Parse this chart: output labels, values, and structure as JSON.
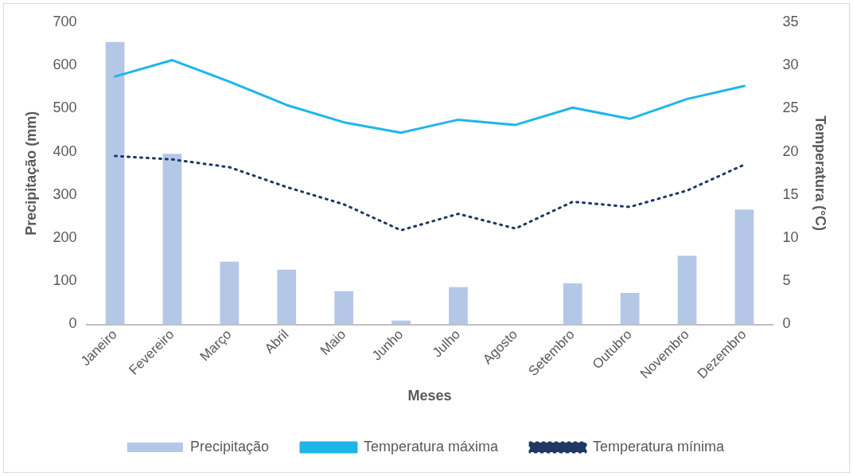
{
  "chart_data": {
    "type": "bar",
    "xlabel": "Meses",
    "ylabel": "Precipitação (mm)",
    "y2label": "Temperatura (°C)",
    "categories": [
      "Janeiro",
      "Fevereiro",
      "Março",
      "Abril",
      "Maio",
      "Junho",
      "Julho",
      "Agosto",
      "Setembro",
      "Outubro",
      "Novembro",
      "Dezembro"
    ],
    "series": [
      {
        "name": "Precipitação",
        "color": "#b4c7e7",
        "values": [
          654,
          395,
          145,
          127,
          77,
          9,
          86,
          null,
          95,
          73,
          159,
          266
        ]
      },
      {
        "name": "Temperatura máxima",
        "type": "line",
        "axis": "y2",
        "color": "#1fb5ea",
        "line_style": "solid",
        "values": [
          28.7,
          30.6,
          28.1,
          25.4,
          23.4,
          22.2,
          23.7,
          23.1,
          25.1,
          23.8,
          26.1,
          27.6
        ]
      },
      {
        "name": "Temperatura mínima",
        "type": "line",
        "axis": "y2",
        "color": "#1f3864",
        "line_style": "dotted",
        "values": [
          19.5,
          19.1,
          18.2,
          15.9,
          13.9,
          10.9,
          12.8,
          11.1,
          14.2,
          13.6,
          15.5,
          18.5
        ]
      }
    ],
    "ylim": [
      0,
      700
    ],
    "yticks": [
      0,
      100,
      200,
      300,
      400,
      500,
      600,
      700
    ],
    "y2lim": [
      0,
      35
    ],
    "y2ticks": [
      0,
      5,
      10,
      15,
      20,
      25,
      30,
      35
    ],
    "legend": "bottom",
    "marker": "none"
  }
}
